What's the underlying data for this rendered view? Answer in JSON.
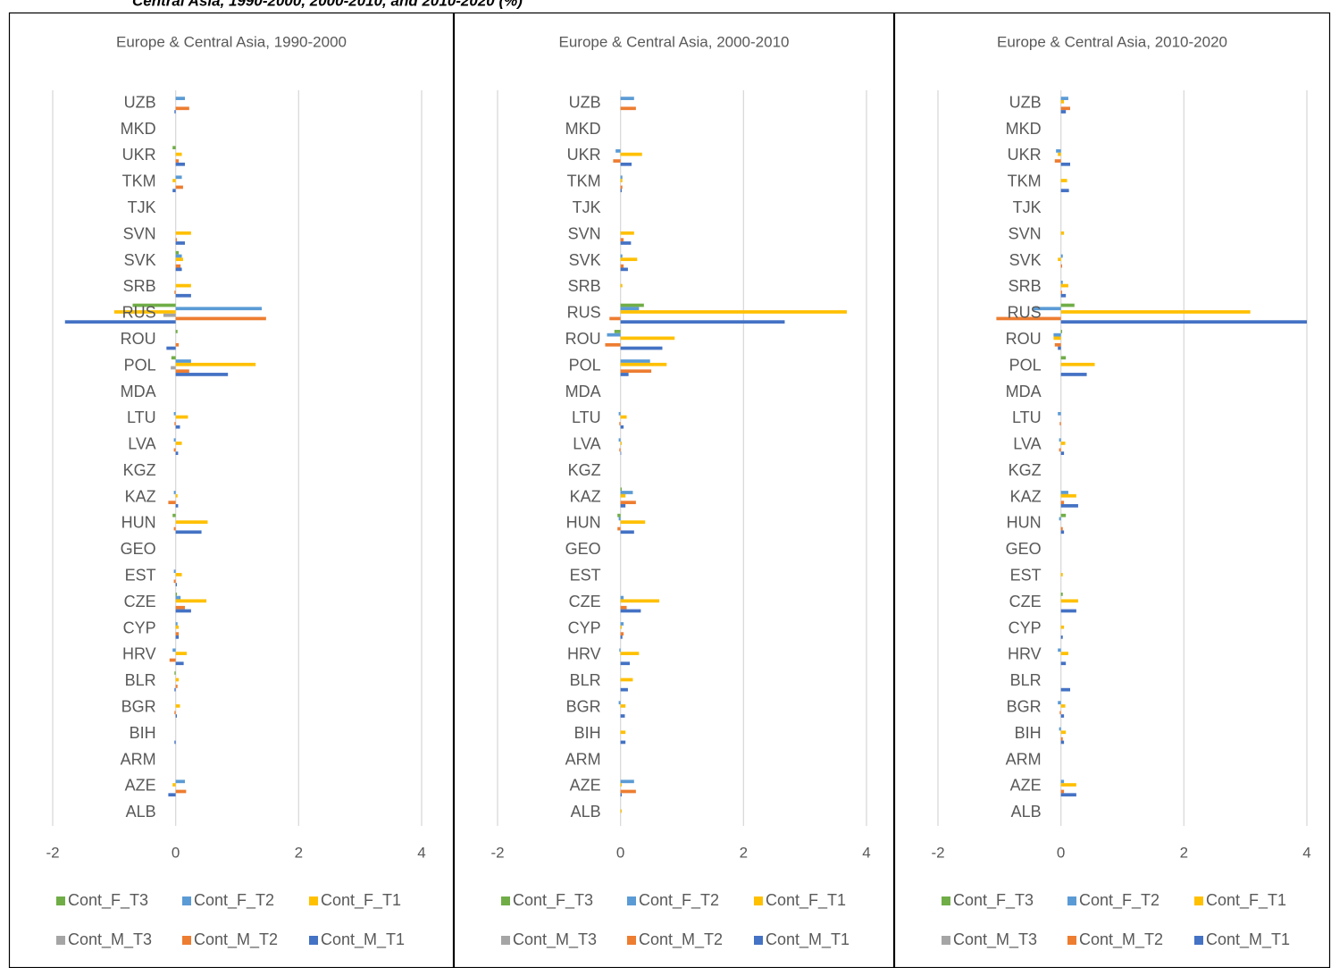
{
  "figure_title": "Central Asia, 1990-2000, 2000-2010, and 2010-2020 (%)",
  "chart_data": [
    {
      "type": "bar",
      "orientation": "horizontal",
      "title": "Europe & Central Asia, 1990-2000",
      "categories": [
        "ALB",
        "AZE",
        "ARM",
        "BIH",
        "BGR",
        "BLR",
        "HRV",
        "CYP",
        "CZE",
        "EST",
        "GEO",
        "HUN",
        "KAZ",
        "KGZ",
        "LVA",
        "LTU",
        "MDA",
        "POL",
        "ROU",
        "RUS",
        "SRB",
        "SVK",
        "SVN",
        "TJK",
        "TKM",
        "UKR",
        "MKD",
        "UZB"
      ],
      "xlim": [
        -2,
        4
      ],
      "xticks": [
        -2,
        0,
        2,
        4
      ],
      "grid": true,
      "series": [
        {
          "name": "Cont_F_T3",
          "color": "#70ad47",
          "values": [
            0,
            0,
            0,
            0,
            0,
            -0.02,
            0,
            0,
            0.02,
            0,
            0,
            -0.05,
            0,
            0,
            0,
            0,
            0,
            -0.07,
            0.03,
            -0.7,
            0,
            0.05,
            0,
            0,
            0,
            -0.05,
            0,
            0
          ]
        },
        {
          "name": "Cont_F_T2",
          "color": "#5b9bd5",
          "values": [
            0,
            0.15,
            0,
            0,
            0,
            0,
            -0.05,
            0.03,
            0.08,
            -0.03,
            0,
            0,
            -0.03,
            0,
            -0.03,
            -0.03,
            0,
            0.25,
            0,
            1.4,
            0,
            0.1,
            0,
            0,
            0.1,
            0,
            0,
            0.15
          ]
        },
        {
          "name": "Cont_F_T1",
          "color": "#ffc000",
          "values": [
            0,
            -0.05,
            0,
            0,
            0.07,
            0.05,
            0.18,
            0.05,
            0.5,
            0.1,
            0,
            0.52,
            0.03,
            0,
            0.1,
            0.2,
            0,
            1.3,
            0,
            -1.0,
            0.25,
            0.12,
            0.25,
            0,
            -0.05,
            0.1,
            0,
            0
          ]
        },
        {
          "name": "Cont_M_T3",
          "color": "#a5a5a5",
          "values": [
            0,
            0,
            0,
            0,
            0,
            0,
            0,
            0,
            0,
            0,
            0,
            0,
            0,
            0,
            0,
            0,
            0,
            -0.08,
            0,
            -0.2,
            0,
            0,
            0,
            0,
            0,
            0,
            0,
            0
          ]
        },
        {
          "name": "Cont_M_T2",
          "color": "#ed7d31",
          "values": [
            0,
            0.17,
            0,
            0,
            -0.02,
            0.03,
            -0.1,
            0.05,
            0.15,
            -0.03,
            0,
            -0.03,
            -0.12,
            0,
            -0.03,
            -0.02,
            0,
            0.22,
            0.05,
            1.47,
            -0.02,
            0.08,
            0.02,
            0,
            0.12,
            0.05,
            0,
            0.22
          ]
        },
        {
          "name": "Cont_M_T1",
          "color": "#4472c4",
          "values": [
            0,
            -0.12,
            0,
            -0.02,
            0.02,
            -0.02,
            0.13,
            0.05,
            0.25,
            0.02,
            0,
            0.42,
            0.04,
            0,
            0.04,
            0.07,
            0,
            0.85,
            -0.15,
            -1.8,
            0.25,
            0.1,
            0.15,
            0,
            -0.05,
            0.15,
            0,
            -0.02
          ]
        }
      ]
    },
    {
      "type": "bar",
      "orientation": "horizontal",
      "title": "Europe & Central Asia, 2000-2010",
      "categories": [
        "ALB",
        "AZE",
        "ARM",
        "BIH",
        "BGR",
        "BLR",
        "HRV",
        "CYP",
        "CZE",
        "EST",
        "GEO",
        "HUN",
        "KAZ",
        "KGZ",
        "LVA",
        "LTU",
        "MDA",
        "POL",
        "ROU",
        "RUS",
        "SRB",
        "SVK",
        "SVN",
        "TJK",
        "TKM",
        "UKR",
        "MKD",
        "UZB"
      ],
      "xlim": [
        -2,
        4
      ],
      "xticks": [
        -2,
        0,
        2,
        4
      ],
      "grid": true,
      "series": [
        {
          "name": "Cont_F_T3",
          "color": "#70ad47",
          "values": [
            0,
            0,
            0,
            0,
            0,
            0,
            0,
            0,
            0,
            0,
            0,
            -0.05,
            0.02,
            0,
            0,
            0,
            0,
            0,
            -0.1,
            0.38,
            0,
            0,
            0,
            0,
            0,
            0,
            0,
            0
          ]
        },
        {
          "name": "Cont_F_T2",
          "color": "#5b9bd5",
          "values": [
            0,
            0.22,
            0,
            0,
            -0.03,
            0,
            -0.02,
            0.05,
            0.05,
            0,
            0,
            -0.03,
            0.2,
            0,
            -0.03,
            -0.03,
            0,
            0.48,
            -0.22,
            0.3,
            0,
            0.03,
            0,
            0,
            0.03,
            -0.08,
            0,
            0.22
          ]
        },
        {
          "name": "Cont_F_T1",
          "color": "#ffc000",
          "values": [
            0.02,
            0.02,
            0,
            0.08,
            0.08,
            0.2,
            0.3,
            0.02,
            0.63,
            0,
            0,
            0.4,
            0.08,
            0,
            0.02,
            0.1,
            0,
            0.75,
            0.88,
            3.68,
            0.03,
            0.27,
            0.22,
            0,
            0.03,
            0.35,
            0,
            0
          ]
        },
        {
          "name": "Cont_M_T3",
          "color": "#a5a5a5",
          "values": [
            0,
            0,
            0,
            0,
            0,
            0,
            0,
            0,
            0,
            0,
            0,
            0,
            0,
            0,
            0,
            0,
            0,
            0,
            0,
            0,
            0,
            0,
            0,
            0,
            0,
            0,
            0,
            0
          ]
        },
        {
          "name": "Cont_M_T2",
          "color": "#ed7d31",
          "values": [
            0,
            0.25,
            0,
            0,
            0,
            0,
            0,
            0.05,
            0.1,
            0,
            0,
            -0.05,
            0.25,
            0,
            -0.02,
            -0.02,
            0,
            0.5,
            -0.25,
            -0.18,
            0,
            0.05,
            0.05,
            0,
            0.03,
            -0.12,
            0,
            0.25
          ]
        },
        {
          "name": "Cont_M_T1",
          "color": "#4472c4",
          "values": [
            0,
            0.02,
            0,
            0.08,
            0.07,
            0.12,
            0.15,
            0.03,
            0.33,
            0,
            0,
            0.22,
            0.08,
            0,
            0.01,
            0.05,
            0,
            0.13,
            0.68,
            2.67,
            0,
            0.12,
            0.17,
            0,
            0.02,
            0.18,
            0,
            0
          ]
        }
      ]
    },
    {
      "type": "bar",
      "orientation": "horizontal",
      "title": "Europe & Central Asia, 2010-2020",
      "categories": [
        "ALB",
        "AZE",
        "ARM",
        "BIH",
        "BGR",
        "BLR",
        "HRV",
        "CYP",
        "CZE",
        "EST",
        "GEO",
        "HUN",
        "KAZ",
        "KGZ",
        "LVA",
        "LTU",
        "MDA",
        "POL",
        "ROU",
        "RUS",
        "SRB",
        "SVK",
        "SVN",
        "TJK",
        "TKM",
        "UKR",
        "MKD",
        "UZB"
      ],
      "xlim": [
        -2,
        4
      ],
      "xticks": [
        -2,
        0,
        2,
        4
      ],
      "grid": true,
      "series": [
        {
          "name": "Cont_F_T3",
          "color": "#70ad47",
          "values": [
            0,
            0,
            0,
            0,
            0,
            0,
            0,
            0,
            0.03,
            0,
            0,
            0.08,
            0,
            0,
            0,
            0,
            0,
            0.08,
            0.02,
            0.22,
            0,
            0,
            0,
            0,
            0,
            0,
            0,
            0
          ]
        },
        {
          "name": "Cont_F_T2",
          "color": "#5b9bd5",
          "values": [
            0,
            0.05,
            0,
            -0.03,
            -0.05,
            0,
            -0.05,
            0,
            0,
            0,
            0,
            -0.03,
            0.12,
            0,
            -0.03,
            -0.05,
            0,
            0,
            -0.12,
            -0.45,
            0.03,
            0.03,
            0,
            0,
            0,
            -0.08,
            0,
            0.12
          ]
        },
        {
          "name": "Cont_F_T1",
          "color": "#ffc000",
          "values": [
            0,
            0.25,
            0,
            0.08,
            0.07,
            0,
            0.12,
            0.05,
            0.28,
            0.03,
            0,
            0,
            0.25,
            0,
            0.07,
            0,
            0,
            0.55,
            -0.12,
            3.08,
            0.12,
            -0.05,
            0.05,
            0,
            0.1,
            -0.05,
            0,
            0.05
          ]
        },
        {
          "name": "Cont_M_T3",
          "color": "#a5a5a5",
          "values": [
            0,
            0,
            0,
            0,
            0,
            0,
            0,
            0,
            0,
            0,
            0,
            0,
            0,
            0,
            0,
            0,
            0,
            0,
            0,
            0,
            0,
            0,
            0,
            0,
            0,
            0,
            0,
            0
          ]
        },
        {
          "name": "Cont_M_T2",
          "color": "#ed7d31",
          "values": [
            0,
            0.05,
            0,
            0.03,
            -0.02,
            0,
            0,
            0,
            0,
            0,
            0,
            0.03,
            0.05,
            0,
            -0.03,
            -0.02,
            0,
            0,
            -0.1,
            -1.05,
            0.02,
            0.02,
            0,
            0,
            0,
            -0.1,
            0,
            0.15
          ]
        },
        {
          "name": "Cont_M_T1",
          "color": "#4472c4",
          "values": [
            0,
            0.25,
            0,
            0.05,
            0.05,
            0.15,
            0.08,
            0.03,
            0.25,
            0,
            0,
            0.05,
            0.28,
            0,
            0.05,
            0,
            0,
            0.42,
            -0.05,
            4.0,
            0.08,
            0,
            0,
            0,
            0.13,
            0.15,
            0,
            0.08
          ]
        }
      ]
    }
  ]
}
